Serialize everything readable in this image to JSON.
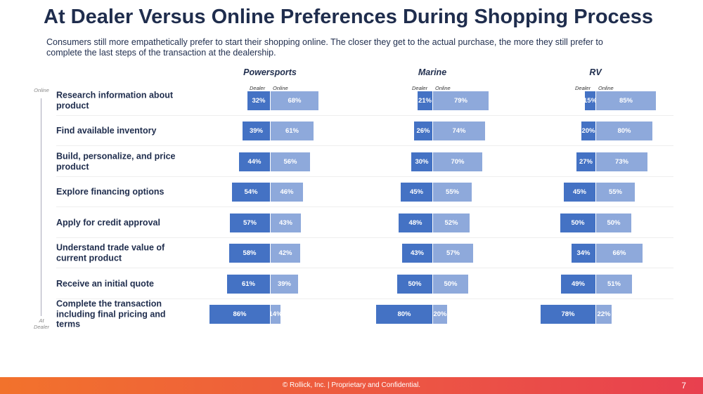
{
  "title": "At Dealer Versus Online Preferences During Shopping Process",
  "subtitle": "Consumers still more empathetically prefer to start their shopping online. The closer they get to the actual purchase, the more they still prefer to complete the last steps of the transaction at the dealership.",
  "axis": {
    "top": "Online",
    "bottom": "At Dealer"
  },
  "colors": {
    "dealer": "#4472C4",
    "online": "#8EA9DB"
  },
  "chart_data": {
    "type": "bar",
    "orientation": "horizontal diverging stacked",
    "legend": [
      "Dealer",
      "Online"
    ],
    "categories": [
      "Research information about product",
      "Find available inventory",
      "Build, personalize, and price product",
      "Explore financing options",
      "Apply for credit approval",
      "Understand trade value of current product",
      "Receive an initial quote",
      "Complete the transaction including final pricing and terms"
    ],
    "groups": [
      {
        "name": "Powersports",
        "series": [
          {
            "name": "Dealer",
            "values": [
              32,
              39,
              44,
              54,
              57,
              58,
              61,
              86
            ]
          },
          {
            "name": "Online",
            "values": [
              68,
              61,
              56,
              46,
              43,
              42,
              39,
              14
            ]
          }
        ]
      },
      {
        "name": "Marine",
        "series": [
          {
            "name": "Dealer",
            "values": [
              21,
              26,
              30,
              45,
              48,
              43,
              50,
              80
            ]
          },
          {
            "name": "Online",
            "values": [
              79,
              74,
              70,
              55,
              52,
              57,
              50,
              20
            ]
          }
        ]
      },
      {
        "name": "RV",
        "series": [
          {
            "name": "Dealer",
            "values": [
              15,
              20,
              27,
              45,
              50,
              34,
              49,
              78
            ]
          },
          {
            "name": "Online",
            "values": [
              85,
              80,
              73,
              55,
              50,
              66,
              51,
              22
            ]
          }
        ]
      }
    ]
  },
  "footer": {
    "text": "© Rollick, Inc.  |  Proprietary and Confidential.",
    "page": "7"
  }
}
